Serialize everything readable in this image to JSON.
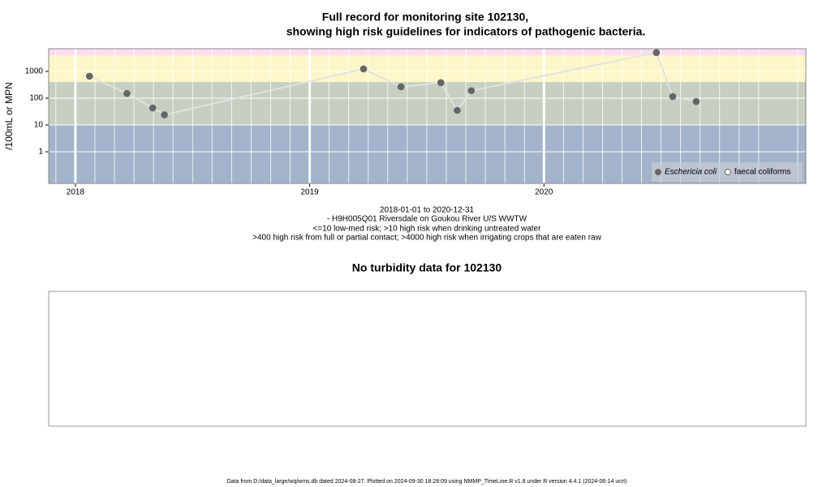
{
  "chart_data": [
    {
      "type": "line",
      "title": [
        "Full record for monitoring site 102130,",
        "showing high risk guidelines for indicators of pathogenic bacteria."
      ],
      "ylabel": "/100mL or MPN",
      "caption": [
        "2018-01-01 to 2020-12-31",
        "- H9H005Q01 Riversdale on Goukou River U/S WWTW",
        "<=10 low-med risk; >10 high risk when drinking untreated water",
        ">400 high risk from full or partial contact; >4000 high risk when irrigating crops that are eaten raw"
      ],
      "series": [
        {
          "name": "Eschericia coli",
          "color": "#666666",
          "x": [
            2018.06,
            2018.22,
            2018.33,
            2018.38,
            2019.23,
            2019.39,
            2019.56,
            2019.63,
            2019.69,
            2020.48,
            2020.55,
            2020.65
          ],
          "values": [
            660,
            150,
            43,
            24,
            1230,
            265,
            380,
            35,
            190,
            5000,
            115,
            75
          ]
        },
        {
          "name": "faecal coliforms",
          "color": "#666666",
          "x": [],
          "values": []
        }
      ],
      "line_color": "#e2e2e2",
      "log_y": true,
      "xlim": [
        2017.886,
        2021.118
      ],
      "xticks": [
        2018,
        2019,
        2020
      ],
      "ylim": [
        0.066,
        7000
      ],
      "yticks": [
        1,
        10,
        100,
        1000
      ],
      "band_edges": [
        10,
        400,
        4000
      ],
      "band_colors": [
        "#a3b3cb",
        "#c6cfc2",
        "#fdf6c8",
        "#fbdcf3"
      ],
      "grid": true,
      "legend": "bottom-right"
    },
    {
      "type": "empty",
      "title": "No turbidity data for 102130"
    }
  ],
  "footer": "Data from D:/data_large/wq/wms.db dated 2024-08-27. Plotted on 2024-09-30 18:28:09 using NMMP_TimeLine.R v1.8 under R version 4.4.1 (2024-06-14 ucrt)"
}
